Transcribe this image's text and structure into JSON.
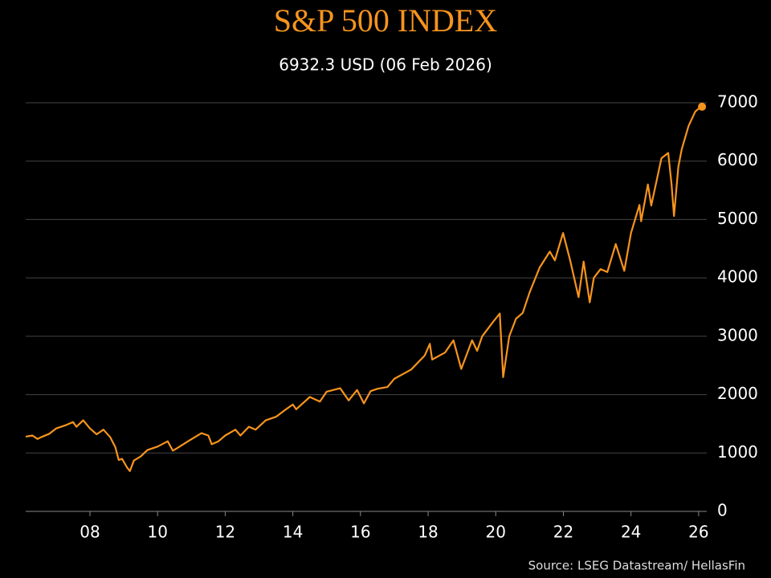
{
  "chart_data": {
    "type": "line",
    "title": "S&P 500 INDEX",
    "subtitle": "6932.3 USD (06 Feb 2026)",
    "source": "Source: LSEG Datastream/ HellasFin",
    "color": "#f7941d",
    "grid": true,
    "last_point_marker": true,
    "x": [
      2006.1,
      2006.3,
      2006.45,
      2006.55,
      2006.8,
      2007.0,
      2007.3,
      2007.5,
      2007.6,
      2007.8,
      2008.0,
      2008.2,
      2008.4,
      2008.6,
      2008.75,
      2008.85,
      2008.95,
      2009.1,
      2009.18,
      2009.3,
      2009.5,
      2009.7,
      2010.0,
      2010.3,
      2010.45,
      2010.6,
      2010.9,
      2011.3,
      2011.5,
      2011.6,
      2011.8,
      2012.0,
      2012.3,
      2012.45,
      2012.7,
      2012.9,
      2013.2,
      2013.5,
      2013.8,
      2014.0,
      2014.1,
      2014.5,
      2014.8,
      2015.0,
      2015.4,
      2015.65,
      2015.9,
      2016.1,
      2016.3,
      2016.5,
      2016.8,
      2017.0,
      2017.5,
      2017.9,
      2018.05,
      2018.12,
      2018.5,
      2018.75,
      2018.98,
      2019.3,
      2019.45,
      2019.6,
      2019.9,
      2020.12,
      2020.22,
      2020.4,
      2020.6,
      2020.8,
      2021.0,
      2021.3,
      2021.6,
      2021.75,
      2021.99,
      2022.2,
      2022.45,
      2022.6,
      2022.78,
      2022.9,
      2023.1,
      2023.3,
      2023.55,
      2023.8,
      2024.0,
      2024.25,
      2024.3,
      2024.5,
      2024.6,
      2024.9,
      2025.1,
      2025.2,
      2025.27,
      2025.4,
      2025.5,
      2025.7,
      2025.9,
      2026.0,
      2026.1
    ],
    "values": [
      1280,
      1300,
      1240,
      1270,
      1330,
      1420,
      1480,
      1530,
      1450,
      1560,
      1420,
      1320,
      1400,
      1270,
      1100,
      880,
      900,
      750,
      690,
      870,
      940,
      1050,
      1110,
      1200,
      1040,
      1090,
      1200,
      1340,
      1300,
      1150,
      1200,
      1300,
      1400,
      1300,
      1450,
      1400,
      1560,
      1620,
      1750,
      1830,
      1750,
      1960,
      1880,
      2050,
      2110,
      1900,
      2080,
      1850,
      2060,
      2100,
      2130,
      2270,
      2430,
      2670,
      2870,
      2600,
      2720,
      2930,
      2440,
      2930,
      2750,
      3000,
      3230,
      3390,
      2300,
      3000,
      3300,
      3400,
      3750,
      4180,
      4450,
      4300,
      4770,
      4300,
      3670,
      4280,
      3580,
      4000,
      4150,
      4100,
      4580,
      4120,
      4770,
      5250,
      4970,
      5600,
      5240,
      6050,
      6140,
      5600,
      5060,
      5900,
      6200,
      6600,
      6850,
      6900,
      6932.3
    ],
    "xlim": [
      2006.1,
      2026.24
    ],
    "ylim": [
      0,
      7000
    ],
    "yticks": [
      0,
      1000,
      2000,
      3000,
      4000,
      5000,
      6000,
      7000
    ],
    "xticks": [
      {
        "value": 2008,
        "label": "08"
      },
      {
        "value": 2010,
        "label": "10"
      },
      {
        "value": 2012,
        "label": "12"
      },
      {
        "value": 2014,
        "label": "14"
      },
      {
        "value": 2016,
        "label": "16"
      },
      {
        "value": 2018,
        "label": "18"
      },
      {
        "value": 2020,
        "label": "20"
      },
      {
        "value": 2022,
        "label": "22"
      },
      {
        "value": 2024,
        "label": "24"
      },
      {
        "value": 2026,
        "label": "26"
      }
    ]
  }
}
